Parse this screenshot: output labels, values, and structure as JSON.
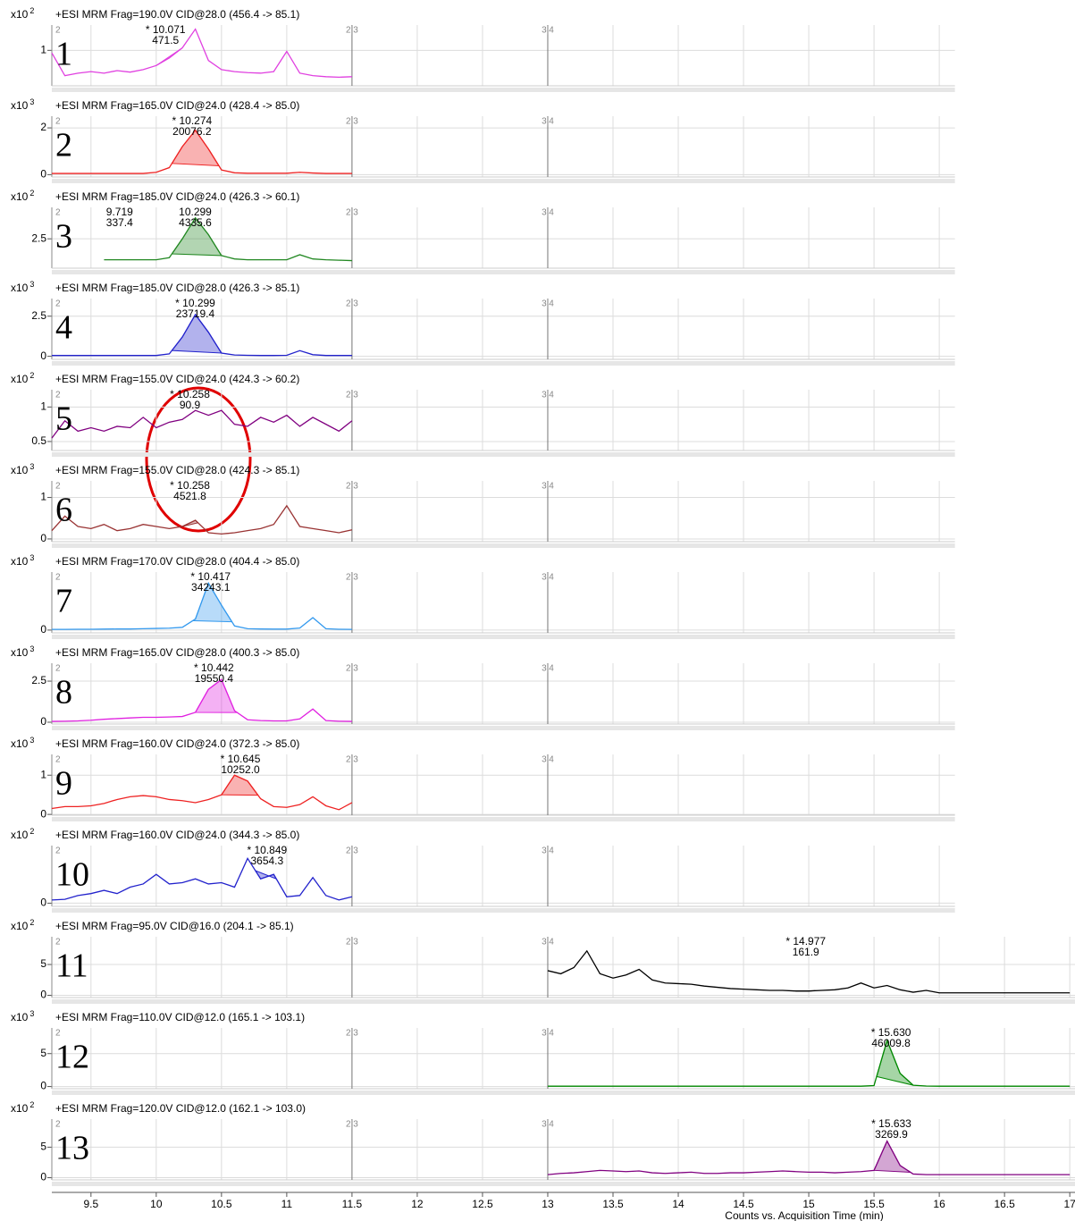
{
  "x_axis": {
    "xlim": [
      9.2,
      17.04
    ],
    "xticks": [
      9.5,
      10,
      10.5,
      11,
      11.5,
      12,
      12.5,
      13,
      13.5,
      14,
      14.5,
      15,
      15.5,
      16,
      16.5,
      17
    ],
    "label": "Counts vs. Acquisition Time (min)"
  },
  "segments": [
    {
      "x": 9.2,
      "label": "2"
    },
    {
      "x": 11.5,
      "label": "2|3"
    },
    {
      "x": 13,
      "label": "3|4"
    }
  ],
  "chart_data": [
    {
      "type": "line",
      "panel_label": "1",
      "scale_label": "x10",
      "scale_exponent": "2",
      "title": "+ESI MRM Frag=190.0V CID@28.0 (456.4 -> 85.1)",
      "color": "#e040e0",
      "xlim": [
        9.2,
        16.12
      ],
      "ylim": [
        0.3,
        1.5
      ],
      "yticks": [
        1
      ],
      "x": [
        9.2,
        9.3,
        9.4,
        9.5,
        9.6,
        9.7,
        9.8,
        9.9,
        10,
        10.1,
        10.2,
        10.3,
        10.4,
        10.5,
        10.6,
        10.7,
        10.8,
        10.9,
        11,
        11.1,
        11.2,
        11.3,
        11.4,
        11.5
      ],
      "values": [
        0.95,
        0.5,
        0.55,
        0.58,
        0.55,
        0.6,
        0.57,
        0.62,
        0.7,
        0.85,
        1.05,
        1.42,
        0.8,
        0.62,
        0.58,
        0.56,
        0.55,
        0.58,
        0.98,
        0.55,
        0.5,
        0.48,
        0.47,
        0.48
      ],
      "peaks": [
        {
          "rt": 10.071,
          "rt_label": "* 10.071",
          "area": 471.5,
          "integration": [
            10.0,
            10.2
          ]
        }
      ]
    },
    {
      "type": "line",
      "panel_label": "2",
      "scale_label": "x10",
      "scale_exponent": "3",
      "title": "+ESI MRM Frag=165.0V CID@24.0 (428.4 -> 85.0)",
      "color": "#ee2222",
      "xlim": [
        9.2,
        16.12
      ],
      "ylim": [
        -0.1,
        2.5
      ],
      "yticks": [
        0,
        2
      ],
      "x": [
        9.2,
        9.3,
        9.4,
        9.5,
        9.6,
        9.7,
        9.8,
        9.9,
        10,
        10.1,
        10.2,
        10.3,
        10.4,
        10.5,
        10.6,
        10.7,
        10.8,
        10.9,
        11,
        11.1,
        11.2,
        11.3,
        11.4,
        11.5
      ],
      "values": [
        0.05,
        0.05,
        0.05,
        0.05,
        0.05,
        0.05,
        0.05,
        0.05,
        0.1,
        0.3,
        1.2,
        1.9,
        1.1,
        0.2,
        0.08,
        0.06,
        0.06,
        0.06,
        0.06,
        0.1,
        0.07,
        0.05,
        0.05,
        0.05
      ],
      "peaks": [
        {
          "rt": 10.274,
          "rt_label": "* 10.274",
          "area": 20076.2,
          "integration": [
            10.12,
            10.48
          ]
        }
      ]
    },
    {
      "type": "line",
      "panel_label": "3",
      "scale_label": "x10",
      "scale_exponent": "2",
      "title": "+ESI MRM Frag=185.0V CID@24.0 (426.3 -> 60.1)",
      "color": "#228822",
      "xlim": [
        9.2,
        16.12
      ],
      "ylim": [
        1.8,
        3.25
      ],
      "yticks": [
        2.5
      ],
      "x": [
        9.6,
        9.7,
        9.8,
        9.9,
        10,
        10.1,
        10.2,
        10.3,
        10.4,
        10.5,
        10.6,
        10.7,
        10.8,
        10.9,
        11,
        11.1,
        11.2,
        11.3,
        11.4,
        11.5
      ],
      "values": [
        2.0,
        2.0,
        2.0,
        2.0,
        2.0,
        2.05,
        2.5,
        3.0,
        2.6,
        2.1,
        2.02,
        2.0,
        2.0,
        2.0,
        2.0,
        2.12,
        2.02,
        2.0,
        1.99,
        1.98
      ],
      "peaks": [
        {
          "rt": 10.299,
          "rt_label": "10.299",
          "area": 4335.6,
          "integration": [
            10.12,
            10.5
          ]
        },
        {
          "rt": 9.719,
          "rt_label": "9.719",
          "area": 337.4
        }
      ]
    },
    {
      "type": "line",
      "panel_label": "4",
      "scale_label": "x10",
      "scale_exponent": "3",
      "title": "+ESI MRM Frag=185.0V CID@28.0 (426.3 -> 85.1)",
      "color": "#2222cc",
      "xlim": [
        9.2,
        16.12
      ],
      "ylim": [
        -0.19,
        3.6
      ],
      "yticks": [
        0,
        2.5
      ],
      "x": [
        9.2,
        9.3,
        9.4,
        9.5,
        9.6,
        9.7,
        9.8,
        9.9,
        10,
        10.1,
        10.2,
        10.3,
        10.4,
        10.5,
        10.6,
        10.7,
        10.8,
        10.9,
        11,
        11.1,
        11.2,
        11.3,
        11.4,
        11.5
      ],
      "values": [
        0.05,
        0.05,
        0.05,
        0.05,
        0.05,
        0.05,
        0.05,
        0.05,
        0.05,
        0.15,
        1.2,
        2.6,
        1.5,
        0.2,
        0.08,
        0.06,
        0.05,
        0.05,
        0.06,
        0.35,
        0.1,
        0.05,
        0.05,
        0.05
      ],
      "peaks": [
        {
          "rt": 10.299,
          "rt_label": "* 10.299",
          "area": 23719.4,
          "integration": [
            10.12,
            10.5
          ]
        }
      ]
    },
    {
      "type": "line",
      "panel_label": "5",
      "scale_label": "x10",
      "scale_exponent": "2",
      "title": "+ESI MRM Frag=155.0V CID@24.0 (424.3 -> 60.2)",
      "color": "#800080",
      "xlim": [
        9.2,
        16.12
      ],
      "ylim": [
        0.37,
        1.25
      ],
      "yticks": [
        0.5,
        1
      ],
      "x": [
        9.2,
        9.3,
        9.4,
        9.5,
        9.6,
        9.7,
        9.8,
        9.9,
        10,
        10.1,
        10.2,
        10.3,
        10.4,
        10.5,
        10.6,
        10.7,
        10.8,
        10.9,
        11,
        11.1,
        11.2,
        11.3,
        11.4,
        11.5
      ],
      "values": [
        0.55,
        0.8,
        0.65,
        0.7,
        0.65,
        0.72,
        0.7,
        0.85,
        0.7,
        0.78,
        0.82,
        0.95,
        0.88,
        0.95,
        0.75,
        0.72,
        0.85,
        0.78,
        0.88,
        0.72,
        0.85,
        0.75,
        0.65,
        0.8
      ],
      "peaks": [
        {
          "rt": 10.258,
          "rt_label": "* 10.258",
          "area": 90.9
        }
      ]
    },
    {
      "type": "line",
      "panel_label": "6",
      "scale_label": "x10",
      "scale_exponent": "3",
      "title": "+ESI MRM Frag=155.0V CID@28.0 (424.3 -> 85.1)",
      "color": "#993333",
      "xlim": [
        9.2,
        16.12
      ],
      "ylim": [
        -0.066,
        1.4
      ],
      "yticks": [
        0,
        1
      ],
      "x": [
        9.2,
        9.3,
        9.4,
        9.5,
        9.6,
        9.7,
        9.8,
        9.9,
        10,
        10.1,
        10.2,
        10.3,
        10.4,
        10.5,
        10.6,
        10.7,
        10.8,
        10.9,
        11,
        11.1,
        11.2,
        11.3,
        11.4,
        11.5
      ],
      "values": [
        0.2,
        0.55,
        0.3,
        0.25,
        0.35,
        0.2,
        0.25,
        0.35,
        0.3,
        0.25,
        0.3,
        0.45,
        0.15,
        0.12,
        0.15,
        0.2,
        0.25,
        0.35,
        0.8,
        0.3,
        0.25,
        0.2,
        0.15,
        0.22
      ],
      "peaks": [
        {
          "rt": 10.258,
          "rt_label": "* 10.258",
          "area": 4521.8,
          "integration": [
            10.2,
            10.32
          ]
        }
      ]
    },
    {
      "type": "line",
      "panel_label": "7",
      "scale_label": "x10",
      "scale_exponent": "3",
      "title": "+ESI MRM Frag=170.0V CID@28.0 (404.4 -> 85.0)",
      "color": "#3399ee",
      "xlim": [
        9.2,
        16.12
      ],
      "ylim": [
        -0.2,
        4.2
      ],
      "yticks": [
        0
      ],
      "x": [
        9.2,
        9.3,
        9.4,
        9.5,
        9.6,
        9.7,
        9.8,
        9.9,
        10,
        10.1,
        10.2,
        10.3,
        10.4,
        10.5,
        10.6,
        10.7,
        10.8,
        10.9,
        11,
        11.1,
        11.2,
        11.3,
        11.4,
        11.5
      ],
      "values": [
        0.05,
        0.05,
        0.06,
        0.06,
        0.07,
        0.08,
        0.08,
        0.1,
        0.12,
        0.14,
        0.2,
        0.8,
        3.4,
        1.8,
        0.3,
        0.1,
        0.08,
        0.07,
        0.07,
        0.15,
        0.9,
        0.1,
        0.06,
        0.05
      ],
      "peaks": [
        {
          "rt": 10.417,
          "rt_label": "* 10.417",
          "area": 34243.1,
          "integration": [
            10.28,
            10.58
          ]
        }
      ]
    },
    {
      "type": "line",
      "panel_label": "8",
      "scale_label": "x10",
      "scale_exponent": "3",
      "title": "+ESI MRM Frag=165.0V CID@28.0 (400.3 -> 85.0)",
      "color": "#e020e0",
      "xlim": [
        9.2,
        16.12
      ],
      "ylim": [
        -0.11,
        3.59
      ],
      "yticks": [
        0,
        2.5
      ],
      "x": [
        9.2,
        9.3,
        9.4,
        9.5,
        9.6,
        9.7,
        9.8,
        9.9,
        10,
        10.1,
        10.2,
        10.3,
        10.4,
        10.5,
        10.6,
        10.7,
        10.8,
        10.9,
        11,
        11.1,
        11.2,
        11.3,
        11.4,
        11.5
      ],
      "values": [
        0.05,
        0.06,
        0.08,
        0.12,
        0.18,
        0.22,
        0.26,
        0.3,
        0.3,
        0.32,
        0.35,
        0.6,
        2.0,
        2.6,
        0.7,
        0.15,
        0.1,
        0.08,
        0.08,
        0.2,
        0.8,
        0.1,
        0.06,
        0.05
      ],
      "peaks": [
        {
          "rt": 10.442,
          "rt_label": "* 10.442",
          "area": 19550.4,
          "integration": [
            10.3,
            10.62
          ]
        }
      ]
    },
    {
      "type": "line",
      "panel_label": "9",
      "scale_label": "x10",
      "scale_exponent": "3",
      "title": "+ESI MRM Frag=160.0V CID@24.0 (372.3 -> 85.0)",
      "color": "#ee2222",
      "xlim": [
        9.2,
        16.12
      ],
      "ylim": [
        -0.02,
        1.53
      ],
      "yticks": [
        0,
        1
      ],
      "x": [
        9.2,
        9.3,
        9.4,
        9.5,
        9.6,
        9.7,
        9.8,
        9.9,
        10,
        10.1,
        10.2,
        10.3,
        10.4,
        10.5,
        10.6,
        10.7,
        10.8,
        10.9,
        11,
        11.1,
        11.2,
        11.3,
        11.4,
        11.5
      ],
      "values": [
        0.15,
        0.2,
        0.2,
        0.22,
        0.28,
        0.38,
        0.45,
        0.48,
        0.45,
        0.38,
        0.35,
        0.3,
        0.38,
        0.5,
        1.0,
        0.85,
        0.4,
        0.2,
        0.18,
        0.25,
        0.45,
        0.22,
        0.12,
        0.3
      ],
      "peaks": [
        {
          "rt": 10.645,
          "rt_label": "* 10.645",
          "area": 10252.0,
          "area_label": "10252.0",
          "integration": [
            10.5,
            10.78
          ]
        }
      ]
    },
    {
      "type": "line",
      "panel_label": "10",
      "scale_label": "x10",
      "scale_exponent": "2",
      "title": "+ESI MRM Frag=160.0V CID@24.0 (344.3 -> 85.0)",
      "color": "#2222cc",
      "xlim": [
        9.2,
        16.12
      ],
      "ylim": [
        -0.5,
        9
      ],
      "yticks": [
        0
      ],
      "x": [
        9.2,
        9.3,
        9.4,
        9.5,
        9.6,
        9.7,
        9.8,
        9.9,
        10,
        10.1,
        10.2,
        10.3,
        10.4,
        10.5,
        10.6,
        10.7,
        10.8,
        10.9,
        11,
        11.1,
        11.2,
        11.3,
        11.4,
        11.5
      ],
      "values": [
        0.5,
        0.6,
        1.2,
        1.5,
        2.0,
        1.5,
        2.5,
        3.0,
        4.5,
        3.0,
        3.2,
        3.8,
        3.0,
        3.2,
        2.5,
        7.0,
        3.8,
        4.5,
        1.0,
        1.2,
        4.0,
        1.2,
        0.5,
        1.0
      ],
      "peaks": [
        {
          "rt": 10.849,
          "rt_label": "* 10.849",
          "area": 3654.3,
          "integration": [
            10.76,
            10.92
          ]
        }
      ]
    },
    {
      "type": "line",
      "panel_label": "11",
      "scale_label": "x10",
      "scale_exponent": "2",
      "title": "+ESI MRM Frag=95.0V CID@16.0 (204.1 -> 85.1)",
      "color": "#000000",
      "xlim": [
        9.2,
        17.04
      ],
      "ylim": [
        -0.36,
        9.5
      ],
      "yticks": [
        0,
        5
      ],
      "x": [
        13,
        13.1,
        13.2,
        13.3,
        13.4,
        13.5,
        13.6,
        13.7,
        13.8,
        13.9,
        14,
        14.1,
        14.2,
        14.3,
        14.4,
        14.5,
        14.6,
        14.7,
        14.8,
        14.9,
        15,
        15.1,
        15.2,
        15.3,
        15.4,
        15.5,
        15.6,
        15.7,
        15.8,
        15.9,
        16,
        16.1,
        16.2,
        16.3,
        16.4,
        16.5,
        16.6,
        16.7,
        16.8,
        16.9,
        17
      ],
      "values": [
        4.0,
        3.5,
        4.5,
        7.2,
        3.5,
        2.8,
        3.3,
        4.2,
        2.5,
        2.0,
        1.9,
        1.8,
        1.5,
        1.3,
        1.1,
        1.0,
        0.9,
        0.8,
        0.8,
        0.7,
        0.7,
        0.8,
        0.9,
        1.2,
        2.0,
        1.2,
        1.6,
        0.9,
        0.5,
        0.8,
        0.4,
        0.4,
        0.4,
        0.4,
        0.4,
        0.4,
        0.4,
        0.4,
        0.4,
        0.4,
        0.4
      ],
      "peaks": [
        {
          "rt": 14.977,
          "rt_label": "* 14.977",
          "area": 161.9,
          "integration": [
            14.9,
            15.05
          ]
        }
      ]
    },
    {
      "type": "line",
      "panel_label": "12",
      "scale_label": "x10",
      "scale_exponent": "3",
      "title": "+ESI MRM Frag=110.0V CID@12.0 (165.1 -> 103.1)",
      "color": "#008800",
      "xlim": [
        9.2,
        17.04
      ],
      "ylim": [
        -0.33,
        8.9
      ],
      "yticks": [
        0,
        5
      ],
      "x": [
        13,
        13.1,
        13.2,
        13.3,
        13.4,
        13.5,
        13.6,
        13.7,
        13.8,
        13.9,
        14,
        14.1,
        14.2,
        14.3,
        14.4,
        14.5,
        14.6,
        14.7,
        14.8,
        14.9,
        15,
        15.1,
        15.2,
        15.3,
        15.4,
        15.5,
        15.6,
        15.7,
        15.8,
        15.9,
        16,
        16.1,
        16.2,
        16.3,
        16.4,
        16.5,
        16.6,
        16.7,
        16.8,
        16.9,
        17
      ],
      "values": [
        0.05,
        0.05,
        0.05,
        0.05,
        0.05,
        0.05,
        0.05,
        0.05,
        0.05,
        0.05,
        0.05,
        0.05,
        0.05,
        0.05,
        0.05,
        0.05,
        0.05,
        0.05,
        0.05,
        0.05,
        0.05,
        0.05,
        0.05,
        0.05,
        0.05,
        0.15,
        7.0,
        2.0,
        0.2,
        0.08,
        0.05,
        0.05,
        0.05,
        0.05,
        0.05,
        0.05,
        0.05,
        0.05,
        0.05,
        0.05,
        0.05
      ],
      "peaks": [
        {
          "rt": 15.63,
          "rt_label": "* 15.630",
          "area": 46009.8,
          "integration": [
            15.52,
            15.8
          ]
        }
      ]
    },
    {
      "type": "line",
      "panel_label": "13",
      "scale_label": "x10",
      "scale_exponent": "2",
      "title": "+ESI MRM Frag=120.0V CID@12.0 (162.1 -> 103.0)",
      "color": "#800080",
      "xlim": [
        9.2,
        17.04
      ],
      "ylim": [
        -0.36,
        9.6
      ],
      "yticks": [
        0,
        5
      ],
      "x": [
        13,
        13.1,
        13.2,
        13.3,
        13.4,
        13.5,
        13.6,
        13.7,
        13.8,
        13.9,
        14,
        14.1,
        14.2,
        14.3,
        14.4,
        14.5,
        14.6,
        14.7,
        14.8,
        14.9,
        15,
        15.1,
        15.2,
        15.3,
        15.4,
        15.5,
        15.6,
        15.7,
        15.8,
        15.9,
        16,
        16.1,
        16.2,
        16.3,
        16.4,
        16.5,
        16.6,
        16.7,
        16.8,
        16.9,
        17
      ],
      "values": [
        0.5,
        0.7,
        0.8,
        1.0,
        1.2,
        1.1,
        1.0,
        1.1,
        0.8,
        0.7,
        0.8,
        0.9,
        0.7,
        0.7,
        0.8,
        0.8,
        0.9,
        1.0,
        1.1,
        1.0,
        0.9,
        0.9,
        0.8,
        0.9,
        1.0,
        1.2,
        6.0,
        2.0,
        0.6,
        0.5,
        0.5,
        0.5,
        0.5,
        0.5,
        0.5,
        0.5,
        0.5,
        0.5,
        0.5,
        0.5,
        0.5
      ],
      "peaks": [
        {
          "rt": 15.633,
          "rt_label": "* 15.633",
          "area": 3269.9,
          "integration": [
            15.5,
            15.78
          ]
        }
      ]
    }
  ]
}
